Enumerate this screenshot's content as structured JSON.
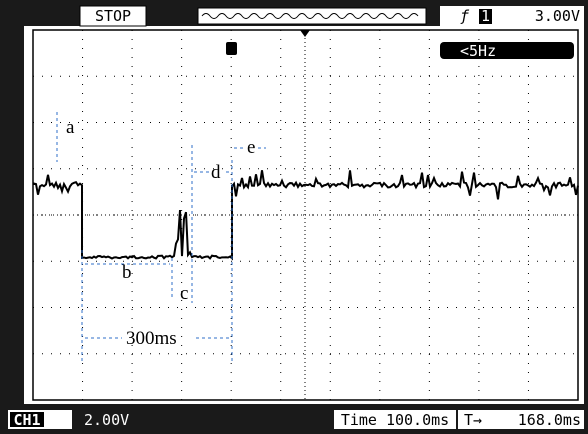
{
  "header": {
    "status": "STOP",
    "trigger_source": "1",
    "trigger_level": "3.00V",
    "frequency": "<5Hz"
  },
  "footer": {
    "channel": "CH1",
    "volts_per_div": "2.00V",
    "timebase": "Time 100.0ms",
    "trigger_offset": "168.0ms"
  },
  "annotations": {
    "a": "a",
    "b": "b",
    "c": "c",
    "d": "d",
    "e": "e",
    "span": "300ms"
  }
}
